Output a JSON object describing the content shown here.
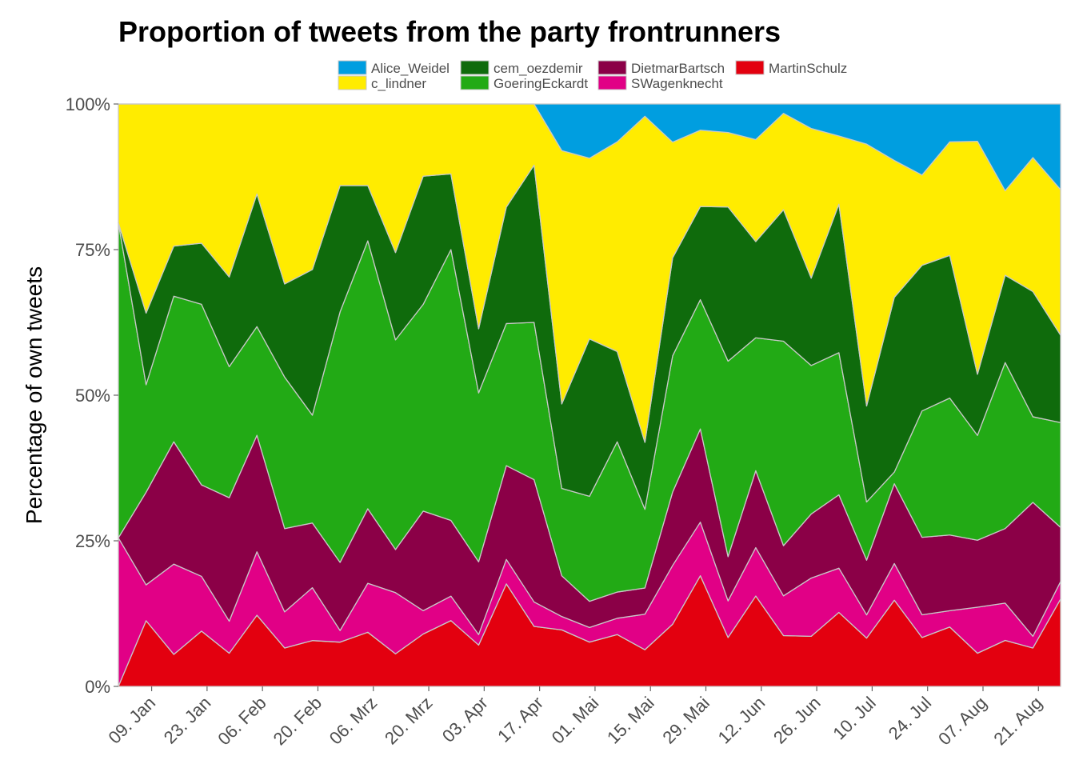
{
  "chart_data": {
    "type": "area",
    "stacked": "proportion",
    "title": "Proportion of tweets from the party frontrunners",
    "xlabel": "",
    "ylabel": "Percentage of own tweets",
    "ylim": [
      0,
      1
    ],
    "y_ticks": [
      0,
      0.25,
      0.5,
      0.75,
      1
    ],
    "y_tick_labels": [
      "0%",
      "25%",
      "50%",
      "75%",
      "100%"
    ],
    "x_tick_labels": [
      "09. Jan",
      "23. Jan",
      "06. Feb",
      "20. Feb",
      "06. Mrz",
      "20. Mrz",
      "03. Apr",
      "17. Apr",
      "01. Mai",
      "15. Mai",
      "29. Mai",
      "12. Jun",
      "26. Jun",
      "10. Jul",
      "24. Jul",
      "07. Aug",
      "21. Aug"
    ],
    "x_tick_positions": [
      1.2,
      3.2,
      5.2,
      7.2,
      9.2,
      11.2,
      13.2,
      15.2,
      17.2,
      19.2,
      21.2,
      23.2,
      25.2,
      27.2,
      29.2,
      31.2,
      33.2
    ],
    "x": [
      0,
      1,
      2,
      3,
      4,
      5,
      6,
      7,
      8,
      9,
      10,
      11,
      12,
      13,
      14,
      15,
      16,
      17,
      18,
      19,
      20,
      21,
      22,
      23,
      24,
      25,
      26,
      27,
      28,
      29,
      30,
      31,
      32,
      33,
      34
    ],
    "legend": {
      "placement": "top",
      "rows": [
        [
          "Alice_Weidel",
          "cem_oezdemir",
          "DietmarBartsch",
          "MartinSchulz"
        ],
        [
          "c_lindner",
          "GoeringEckardt",
          "SWagenknecht"
        ]
      ]
    },
    "grid": false,
    "series": [
      {
        "name": "MartinSchulz",
        "color": "#e3000f",
        "values": [
          0.0,
          0.11,
          0.055,
          0.095,
          0.057,
          0.11,
          0.066,
          0.085,
          0.076,
          0.093,
          0.056,
          0.09,
          0.113,
          0.071,
          0.176,
          0.103,
          0.097,
          0.076,
          0.089,
          0.063,
          0.106,
          0.19,
          0.084,
          0.155,
          0.087,
          0.086,
          0.127,
          0.083,
          0.148,
          0.084,
          0.102,
          0.057,
          0.079,
          0.066,
          0.15
        ]
      },
      {
        "name": "SWagenknecht",
        "color": "#e10086",
        "values": [
          0.25,
          0.06,
          0.155,
          0.094,
          0.055,
          0.098,
          0.062,
          0.098,
          0.02,
          0.084,
          0.105,
          0.04,
          0.042,
          0.018,
          0.042,
          0.042,
          0.023,
          0.025,
          0.028,
          0.061,
          0.1,
          0.092,
          0.063,
          0.083,
          0.068,
          0.1,
          0.076,
          0.04,
          0.063,
          0.039,
          0.028,
          0.079,
          0.064,
          0.02,
          0.03
        ]
      },
      {
        "name": "DietmarBartsch",
        "color": "#8b0047",
        "values": [
          0.0,
          0.155,
          0.21,
          0.157,
          0.212,
          0.18,
          0.143,
          0.12,
          0.117,
          0.128,
          0.074,
          0.171,
          0.13,
          0.125,
          0.161,
          0.21,
          0.07,
          0.045,
          0.045,
          0.045,
          0.125,
          0.16,
          0.076,
          0.132,
          0.086,
          0.11,
          0.126,
          0.094,
          0.137,
          0.133,
          0.13,
          0.115,
          0.128,
          0.23,
          0.093
        ]
      },
      {
        "name": "GoeringEckardt",
        "color": "#22aa15",
        "values": [
          0.53,
          0.18,
          0.25,
          0.31,
          0.225,
          0.168,
          0.26,
          0.2,
          0.43,
          0.46,
          0.36,
          0.355,
          0.465,
          0.29,
          0.244,
          0.27,
          0.15,
          0.18,
          0.258,
          0.135,
          0.232,
          0.222,
          0.336,
          0.228,
          0.35,
          0.255,
          0.244,
          0.1,
          0.02,
          0.217,
          0.235,
          0.18,
          0.285,
          0.147,
          0.18
        ]
      },
      {
        "name": "cem_oezdemir",
        "color": "#0f6b0c",
        "values": [
          0.0,
          0.12,
          0.086,
          0.105,
          0.154,
          0.205,
          0.16,
          0.27,
          0.217,
          0.095,
          0.15,
          0.22,
          0.13,
          0.11,
          0.2,
          0.27,
          0.145,
          0.27,
          0.155,
          0.115,
          0.167,
          0.16,
          0.265,
          0.165,
          0.225,
          0.15,
          0.255,
          0.165,
          0.3,
          0.25,
          0.245,
          0.105,
          0.15,
          0.215,
          0.15
        ]
      },
      {
        "name": "c_lindner",
        "color": "#ffec00",
        "values": [
          0.2,
          0.35,
          0.244,
          0.239,
          0.297,
          0.139,
          0.309,
          0.307,
          0.14,
          0.14,
          0.255,
          0.124,
          0.12,
          0.386,
          0.177,
          0.105,
          0.435,
          0.31,
          0.36,
          0.56,
          0.197,
          0.131,
          0.128,
          0.175,
          0.165,
          0.257,
          0.117,
          0.45,
          0.235,
          0.155,
          0.195,
          0.4,
          0.145,
          0.23,
          0.25
        ]
      },
      {
        "name": "Alice_Weidel",
        "color": "#009ee0",
        "values": [
          0.0,
          0.0,
          0.0,
          0.0,
          0.0,
          0.0,
          0.0,
          0.0,
          0.0,
          0.0,
          0.0,
          0.0,
          0.0,
          0.0,
          0.0,
          0.0,
          0.08,
          0.093,
          0.065,
          0.021,
          0.065,
          0.045,
          0.049,
          0.061,
          0.016,
          0.042,
          0.055,
          0.069,
          0.097,
          0.122,
          0.065,
          0.064,
          0.149,
          0.092,
          0.147
        ]
      }
    ]
  }
}
